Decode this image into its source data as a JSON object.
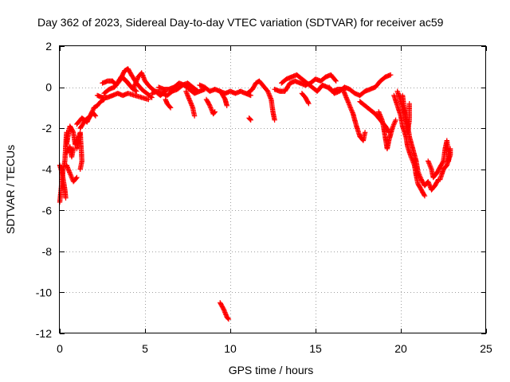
{
  "chart_data": {
    "type": "scatter",
    "title": "Day 362 of 2023, Sidereal Day-to-day VTEC variation (SDTVAR) for receiver ac59",
    "xlabel": "GPS time / hours",
    "ylabel": "SDTVAR / TECUs",
    "xlim": [
      0,
      25
    ],
    "ylim": [
      -12,
      2
    ],
    "xticks": [
      0,
      5,
      10,
      15,
      20,
      25
    ],
    "yticks": [
      2,
      0,
      -2,
      -4,
      -6,
      -8,
      -10,
      -12
    ],
    "xtick_labels": [
      "0",
      "5",
      "10",
      "15",
      "20",
      "25"
    ],
    "ytick_labels": [
      "2",
      "0",
      "-2",
      "-4",
      "-6",
      "-8",
      "-10",
      "-12"
    ],
    "grid": true,
    "marker": "+",
    "color": "#ff0000",
    "segments": [
      [
        [
          0.0,
          -5.6
        ],
        [
          0.1,
          -4.8
        ],
        [
          0.2,
          -4.0
        ],
        [
          0.3,
          -3.6
        ],
        [
          0.35,
          -2.8
        ],
        [
          0.4,
          -2.2
        ]
      ],
      [
        [
          0.0,
          -3.8
        ],
        [
          0.15,
          -4.2
        ],
        [
          0.3,
          -5.0
        ],
        [
          0.35,
          -5.4
        ]
      ],
      [
        [
          0.4,
          -3.8
        ],
        [
          0.6,
          -4.2
        ],
        [
          0.8,
          -4.6
        ],
        [
          1.0,
          -4.4
        ]
      ],
      [
        [
          0.4,
          -2.8
        ],
        [
          0.5,
          -2.3
        ],
        [
          0.6,
          -1.9
        ],
        [
          0.8,
          -2.2
        ],
        [
          0.9,
          -2.8
        ],
        [
          1.0,
          -2.5
        ]
      ],
      [
        [
          0.4,
          -3.2
        ],
        [
          0.6,
          -2.9
        ],
        [
          0.7,
          -3.4
        ],
        [
          0.8,
          -3.0
        ]
      ],
      [
        [
          1.0,
          -3.0
        ],
        [
          1.1,
          -2.5
        ],
        [
          1.2,
          -2.2
        ],
        [
          1.3,
          -3.6
        ],
        [
          1.2,
          -4.0
        ]
      ],
      [
        [
          1.2,
          -2.0
        ],
        [
          1.5,
          -1.6
        ],
        [
          1.8,
          -1.4
        ],
        [
          2.0,
          -1.0
        ],
        [
          2.2,
          -0.9
        ],
        [
          2.4,
          -0.7
        ],
        [
          2.6,
          -0.6
        ]
      ],
      [
        [
          1.0,
          -1.8
        ],
        [
          1.3,
          -1.5
        ],
        [
          1.6,
          -1.7
        ],
        [
          1.9,
          -1.2
        ],
        [
          2.1,
          -1.4
        ]
      ],
      [
        [
          2.2,
          -0.4
        ],
        [
          2.5,
          -0.5
        ],
        [
          2.8,
          -0.5
        ],
        [
          3.1,
          -0.4
        ],
        [
          3.4,
          -0.3
        ],
        [
          3.7,
          -0.4
        ],
        [
          4.0,
          -0.3
        ],
        [
          4.4,
          -0.4
        ],
        [
          4.8,
          -0.5
        ],
        [
          5.2,
          -0.6
        ]
      ],
      [
        [
          2.6,
          -0.3
        ],
        [
          2.9,
          -0.1
        ],
        [
          3.2,
          0.0
        ],
        [
          3.5,
          0.3
        ],
        [
          3.8,
          0.8
        ],
        [
          4.0,
          0.9
        ],
        [
          4.2,
          0.6
        ],
        [
          4.5,
          0.2
        ],
        [
          4.8,
          -0.1
        ],
        [
          5.1,
          -0.3
        ],
        [
          5.4,
          -0.5
        ]
      ],
      [
        [
          2.5,
          0.2
        ],
        [
          2.8,
          0.3
        ],
        [
          3.1,
          0.3
        ],
        [
          3.3,
          0.1
        ],
        [
          3.6,
          0.5
        ],
        [
          3.9,
          0.3
        ],
        [
          4.2,
          0.0
        ],
        [
          4.5,
          -0.2
        ]
      ],
      [
        [
          3.8,
          0.4
        ],
        [
          4.0,
          0.2
        ],
        [
          4.3,
          -0.1
        ],
        [
          4.6,
          0.5
        ],
        [
          4.8,
          0.7
        ],
        [
          5.0,
          0.3
        ],
        [
          5.3,
          0.0
        ],
        [
          5.6,
          -0.2
        ],
        [
          5.9,
          -0.4
        ],
        [
          6.2,
          -0.2
        ]
      ],
      [
        [
          5.4,
          -0.3
        ],
        [
          5.7,
          -0.2
        ],
        [
          6.0,
          -0.3
        ],
        [
          6.3,
          -0.4
        ],
        [
          6.6,
          -0.2
        ],
        [
          6.9,
          -0.1
        ],
        [
          7.2,
          0.1
        ],
        [
          7.5,
          0.2
        ],
        [
          7.8,
          0.0
        ],
        [
          8.1,
          -0.2
        ]
      ],
      [
        [
          5.8,
          0.0
        ],
        [
          6.1,
          -0.1
        ],
        [
          6.4,
          -0.1
        ],
        [
          6.7,
          0.0
        ],
        [
          7.0,
          0.2
        ],
        [
          7.3,
          0.1
        ],
        [
          7.6,
          -0.1
        ],
        [
          7.9,
          -0.3
        ],
        [
          8.2,
          -0.2
        ],
        [
          8.5,
          -0.1
        ]
      ],
      [
        [
          6.2,
          -0.6
        ],
        [
          6.3,
          -0.8
        ],
        [
          6.5,
          -1.0
        ]
      ],
      [
        [
          7.4,
          -0.2
        ],
        [
          7.6,
          -0.6
        ],
        [
          7.8,
          -1.0
        ],
        [
          7.9,
          -1.4
        ]
      ],
      [
        [
          8.2,
          0.1
        ],
        [
          8.5,
          0.0
        ],
        [
          8.8,
          -0.2
        ],
        [
          9.1,
          -0.1
        ],
        [
          9.4,
          -0.2
        ],
        [
          9.7,
          -0.3
        ],
        [
          10.0,
          -0.2
        ],
        [
          10.3,
          -0.3
        ],
        [
          10.6,
          -0.2
        ],
        [
          10.9,
          -0.3
        ],
        [
          11.2,
          -0.4
        ]
      ],
      [
        [
          8.6,
          -0.6
        ],
        [
          8.8,
          -0.9
        ],
        [
          9.0,
          -1.3
        ],
        [
          9.1,
          -1.2
        ]
      ],
      [
        [
          9.5,
          -0.3
        ],
        [
          9.7,
          -0.6
        ],
        [
          9.8,
          -0.9
        ]
      ],
      [
        [
          11.0,
          -0.3
        ],
        [
          11.3,
          -0.1
        ],
        [
          11.5,
          0.2
        ],
        [
          11.7,
          0.3
        ],
        [
          11.9,
          0.1
        ],
        [
          12.2,
          -0.2
        ],
        [
          12.4,
          -0.6
        ],
        [
          12.5,
          -1.2
        ],
        [
          12.6,
          -1.6
        ]
      ],
      [
        [
          11.1,
          -1.5
        ],
        [
          11.2,
          -1.6
        ]
      ],
      [
        [
          9.4,
          -10.5
        ],
        [
          9.6,
          -10.8
        ],
        [
          9.8,
          -11.2
        ],
        [
          9.9,
          -11.3
        ]
      ],
      [
        [
          12.6,
          -0.1
        ],
        [
          12.9,
          -0.2
        ],
        [
          13.2,
          -0.2
        ],
        [
          13.5,
          0.2
        ],
        [
          13.8,
          0.3
        ],
        [
          14.1,
          0.2
        ],
        [
          14.4,
          0.1
        ],
        [
          14.7,
          0.2
        ],
        [
          15.0,
          0.4
        ],
        [
          15.3,
          0.3
        ],
        [
          15.6,
          0.5
        ],
        [
          15.9,
          0.6
        ],
        [
          16.2,
          0.3
        ]
      ],
      [
        [
          13.0,
          0.2
        ],
        [
          13.3,
          0.4
        ],
        [
          13.6,
          0.5
        ],
        [
          13.9,
          0.6
        ],
        [
          14.2,
          0.4
        ],
        [
          14.5,
          0.2
        ],
        [
          14.8,
          0.0
        ],
        [
          15.1,
          -0.2
        ],
        [
          15.4,
          0.1
        ],
        [
          15.7,
          0.0
        ],
        [
          16.0,
          -0.2
        ],
        [
          16.3,
          -0.1
        ],
        [
          16.6,
          -0.1
        ]
      ],
      [
        [
          14.2,
          -0.3
        ],
        [
          14.4,
          -0.5
        ],
        [
          14.6,
          -0.8
        ]
      ],
      [
        [
          15.8,
          0.0
        ],
        [
          16.1,
          -0.3
        ],
        [
          16.4,
          -0.2
        ],
        [
          16.7,
          0.0
        ],
        [
          17.0,
          -0.1
        ],
        [
          17.3,
          -0.3
        ],
        [
          17.6,
          -0.4
        ],
        [
          17.9,
          -0.2
        ],
        [
          18.2,
          -0.1
        ],
        [
          18.5,
          0.0
        ],
        [
          18.8,
          0.3
        ],
        [
          19.1,
          0.5
        ],
        [
          19.4,
          0.6
        ]
      ],
      [
        [
          16.6,
          -0.1
        ],
        [
          16.8,
          -0.5
        ],
        [
          17.0,
          -0.9
        ],
        [
          17.2,
          -1.3
        ],
        [
          17.4,
          -1.9
        ],
        [
          17.6,
          -2.4
        ],
        [
          17.8,
          -2.6
        ],
        [
          17.9,
          -2.2
        ]
      ],
      [
        [
          17.6,
          -0.7
        ],
        [
          17.9,
          -0.9
        ],
        [
          18.2,
          -1.1
        ],
        [
          18.5,
          -1.3
        ],
        [
          18.8,
          -1.6
        ],
        [
          19.1,
          -1.9
        ],
        [
          19.3,
          -2.2
        ]
      ],
      [
        [
          18.7,
          -1.2
        ],
        [
          18.9,
          -1.6
        ],
        [
          19.0,
          -2.0
        ],
        [
          19.1,
          -2.5
        ],
        [
          19.2,
          -3.0
        ],
        [
          19.3,
          -2.6
        ],
        [
          19.5,
          -2.0
        ],
        [
          19.7,
          -1.6
        ]
      ],
      [
        [
          19.6,
          -0.4
        ],
        [
          19.8,
          -0.9
        ],
        [
          20.0,
          -1.4
        ],
        [
          20.1,
          -1.9
        ],
        [
          20.3,
          -2.4
        ],
        [
          20.4,
          -2.9
        ],
        [
          20.6,
          -3.4
        ],
        [
          20.8,
          -3.8
        ],
        [
          20.9,
          -4.3
        ],
        [
          21.0,
          -4.7
        ],
        [
          21.2,
          -5.0
        ],
        [
          21.4,
          -5.3
        ]
      ],
      [
        [
          19.8,
          -0.2
        ],
        [
          20.0,
          -0.7
        ],
        [
          20.2,
          -1.2
        ],
        [
          20.4,
          -1.8
        ],
        [
          20.5,
          -2.4
        ],
        [
          20.7,
          -3.0
        ],
        [
          20.9,
          -3.6
        ],
        [
          21.0,
          -4.1
        ],
        [
          21.2,
          -4.5
        ],
        [
          21.4,
          -4.8
        ],
        [
          21.6,
          -4.6
        ],
        [
          21.8,
          -5.0
        ],
        [
          22.0,
          -4.8
        ],
        [
          22.2,
          -4.5
        ]
      ],
      [
        [
          20.1,
          -0.4
        ],
        [
          20.2,
          -1.0
        ],
        [
          20.3,
          -1.6
        ],
        [
          20.4,
          -2.2
        ],
        [
          20.5,
          -1.6
        ],
        [
          20.5,
          -0.8
        ]
      ],
      [
        [
          21.6,
          -3.6
        ],
        [
          21.8,
          -4.0
        ],
        [
          21.9,
          -4.4
        ],
        [
          22.1,
          -4.2
        ],
        [
          22.3,
          -3.9
        ],
        [
          22.5,
          -3.6
        ],
        [
          22.6,
          -3.0
        ],
        [
          22.7,
          -2.6
        ],
        [
          22.8,
          -3.2
        ],
        [
          22.8,
          -3.6
        ]
      ],
      [
        [
          22.3,
          -4.5
        ],
        [
          22.5,
          -4.0
        ],
        [
          22.7,
          -3.8
        ],
        [
          22.9,
          -3.3
        ],
        [
          22.9,
          -3.0
        ]
      ]
    ]
  }
}
